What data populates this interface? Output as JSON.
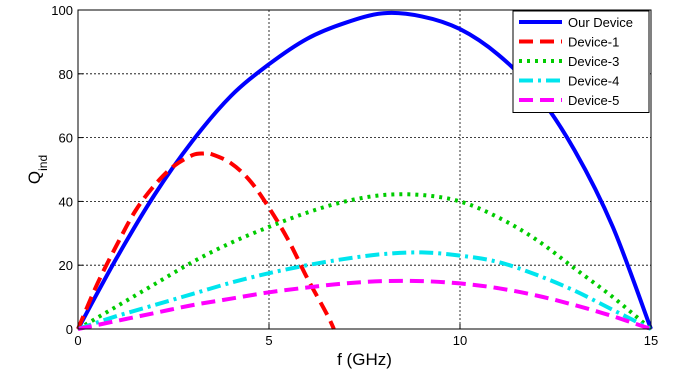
{
  "chart_data": {
    "type": "line",
    "title": "",
    "xlabel": "f (GHz)",
    "ylabel_main": "Q",
    "ylabel_sub": "ind",
    "xlim": [
      0,
      15
    ],
    "ylim": [
      0,
      100
    ],
    "xticks": [
      "0",
      "5",
      "10",
      "15"
    ],
    "yticks": [
      "0",
      "20",
      "40",
      "60",
      "80",
      "100"
    ],
    "grid": true,
    "legend_position": "top-right",
    "series": [
      {
        "name": "Our Device",
        "color": "#0000ff",
        "dash": "solid",
        "x": [
          0,
          1,
          2,
          3,
          4,
          5,
          6,
          7,
          8,
          9,
          10,
          11,
          12,
          13,
          14,
          15
        ],
        "y": [
          0,
          22,
          42,
          59,
          73,
          83,
          91,
          96,
          99,
          98,
          94,
          86,
          74,
          56,
          32,
          0
        ]
      },
      {
        "name": "Device-1",
        "color": "#ff0000",
        "dash": "dashed",
        "x": [
          0,
          0.5,
          1,
          1.5,
          2,
          2.5,
          3,
          3.3,
          3.5,
          4,
          4.5,
          5,
          5.5,
          6,
          6.5,
          6.7
        ],
        "y": [
          0,
          14,
          26,
          37,
          45,
          51,
          54.5,
          55,
          54.8,
          52,
          46.5,
          38,
          28,
          16,
          5,
          0
        ]
      },
      {
        "name": "Device-3",
        "color": "#00cc00",
        "dash": "dotted",
        "x": [
          0,
          1,
          2,
          3,
          4,
          5,
          6,
          7,
          8,
          9,
          10,
          11,
          12,
          13,
          14,
          15
        ],
        "y": [
          0,
          7,
          14,
          21,
          27,
          32,
          36.5,
          40,
          42,
          42,
          40,
          35,
          28,
          19,
          10,
          0
        ]
      },
      {
        "name": "Device-4",
        "color": "#00e5ee",
        "dash": "dashdot",
        "x": [
          0,
          1,
          2,
          3,
          4,
          5,
          6,
          7,
          8,
          9,
          10,
          11,
          12,
          13,
          14,
          15
        ],
        "y": [
          0,
          4,
          7.5,
          11,
          14.5,
          17.5,
          20,
          22,
          23.5,
          24,
          23,
          21,
          17,
          12,
          6,
          0
        ]
      },
      {
        "name": "Device-5",
        "color": "#ff00ff",
        "dash": "dashed",
        "x": [
          0,
          1,
          2,
          3,
          4,
          5,
          6,
          7,
          8,
          9,
          10,
          11,
          12,
          13,
          14,
          15
        ],
        "y": [
          0,
          2.5,
          5,
          7.5,
          9.5,
          11.5,
          13,
          14.3,
          15,
          15,
          14.3,
          12.8,
          10.5,
          7.5,
          4,
          0
        ]
      }
    ]
  }
}
